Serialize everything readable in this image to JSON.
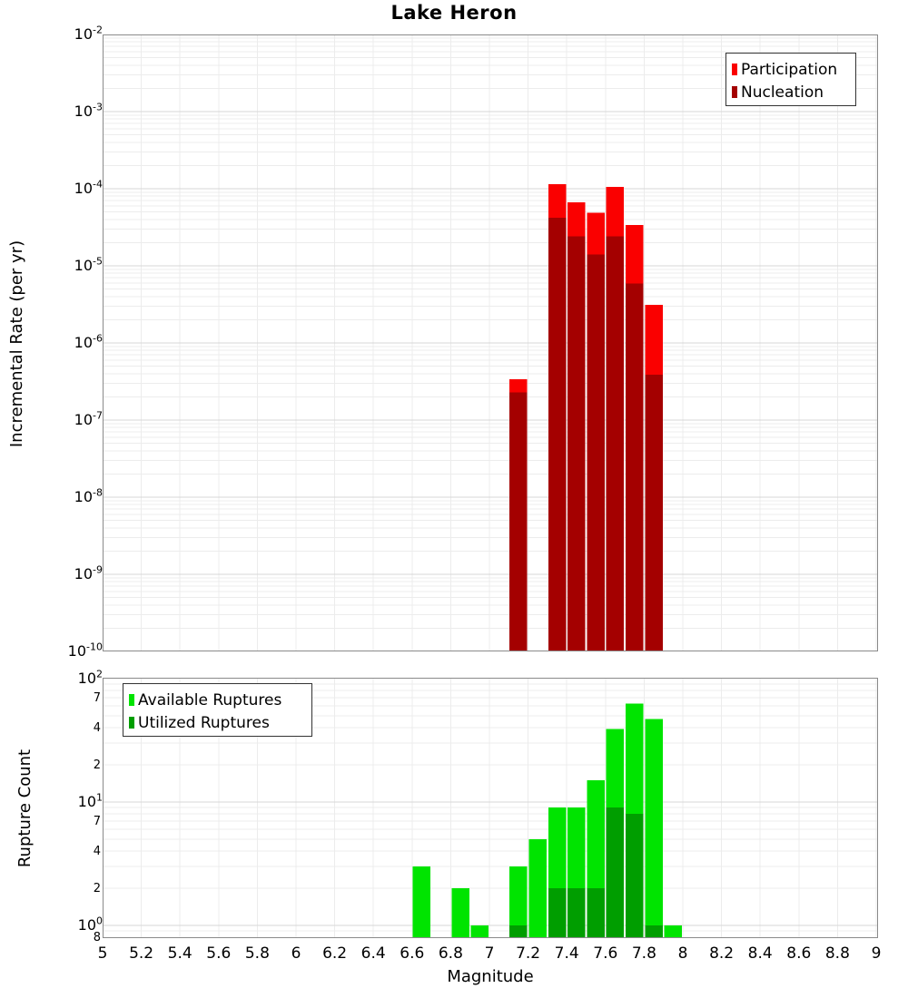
{
  "title": "Lake Heron",
  "xlabel": "Magnitude",
  "x_tick_labels": [
    "5",
    "5.2",
    "5.4",
    "5.6",
    "5.8",
    "6",
    "6.2",
    "6.4",
    "6.6",
    "6.8",
    "7",
    "7.2",
    "7.4",
    "7.6",
    "7.8",
    "8",
    "8.2",
    "8.4",
    "8.6",
    "8.8",
    "9"
  ],
  "colors": {
    "participation": "#fa0000",
    "nucleation": "#a40000",
    "available": "#00e400",
    "utilized": "#009e00",
    "grid_minor": "#ececec",
    "grid_major": "#d7d7d7",
    "frame": "#8a8a8a"
  },
  "chart_data": [
    {
      "type": "bar",
      "panel": "top",
      "ylabel": "Incremental Rate (per yr)",
      "yscale": "log",
      "ylim": [
        1e-10,
        0.01
      ],
      "xlim": [
        5,
        9
      ],
      "grid": true,
      "bin_width": 0.1,
      "legend_position": "top-right",
      "categories": [
        7.15,
        7.35,
        7.45,
        7.55,
        7.65,
        7.75,
        7.85
      ],
      "series": [
        {
          "name": "Participation",
          "color_key": "participation",
          "values": [
            3.4e-07,
            0.000115,
            6.7e-05,
            4.9e-05,
            0.000105,
            3.4e-05,
            3.1e-06
          ]
        },
        {
          "name": "Nucleation",
          "color_key": "nucleation",
          "values": [
            2.3e-07,
            4.2e-05,
            2.4e-05,
            1.4e-05,
            2.4e-05,
            5.9e-06,
            3.9e-07
          ]
        }
      ],
      "y_ticks": [
        {
          "v": 0.01,
          "base": "10",
          "sup": "-2"
        },
        {
          "v": 0.001,
          "base": "10",
          "sup": "-3"
        },
        {
          "v": 0.0001,
          "base": "10",
          "sup": "-4"
        },
        {
          "v": 1e-05,
          "base": "10",
          "sup": "-5"
        },
        {
          "v": 1e-06,
          "base": "10",
          "sup": "-6"
        },
        {
          "v": 1e-07,
          "base": "10",
          "sup": "-7"
        },
        {
          "v": 1e-08,
          "base": "10",
          "sup": "-8"
        },
        {
          "v": 1e-09,
          "base": "10",
          "sup": "-9"
        },
        {
          "v": 1e-10,
          "base": "10",
          "sup": "-10"
        }
      ]
    },
    {
      "type": "bar",
      "panel": "bottom",
      "ylabel": "Rupture Count",
      "yscale": "log",
      "ylim": [
        0.8,
        100
      ],
      "xlim": [
        5,
        9
      ],
      "grid": true,
      "bin_width": 0.1,
      "legend_position": "top-left",
      "categories": [
        6.65,
        6.85,
        6.95,
        7.15,
        7.25,
        7.35,
        7.45,
        7.55,
        7.65,
        7.75,
        7.85,
        7.95
      ],
      "series": [
        {
          "name": "Available Ruptures",
          "color_key": "available",
          "values": [
            3,
            2,
            1,
            3,
            5,
            9,
            9,
            15,
            39,
            63,
            47,
            1
          ]
        },
        {
          "name": "Utilized Ruptures",
          "color_key": "utilized",
          "values": [
            null,
            null,
            null,
            1,
            null,
            2,
            2,
            2,
            9,
            8,
            1,
            null
          ]
        }
      ],
      "y_ticks": [
        {
          "v": 100,
          "base": "10",
          "sup": "2"
        },
        {
          "v": 70,
          "minor": "7"
        },
        {
          "v": 40,
          "minor": "4"
        },
        {
          "v": 20,
          "minor": "2"
        },
        {
          "v": 10,
          "base": "10",
          "sup": "1"
        },
        {
          "v": 7,
          "minor": "7"
        },
        {
          "v": 4,
          "minor": "4"
        },
        {
          "v": 2,
          "minor": "2"
        },
        {
          "v": 1,
          "base": "10",
          "sup": "0"
        },
        {
          "v": 0.8,
          "minor": "8"
        }
      ]
    }
  ]
}
